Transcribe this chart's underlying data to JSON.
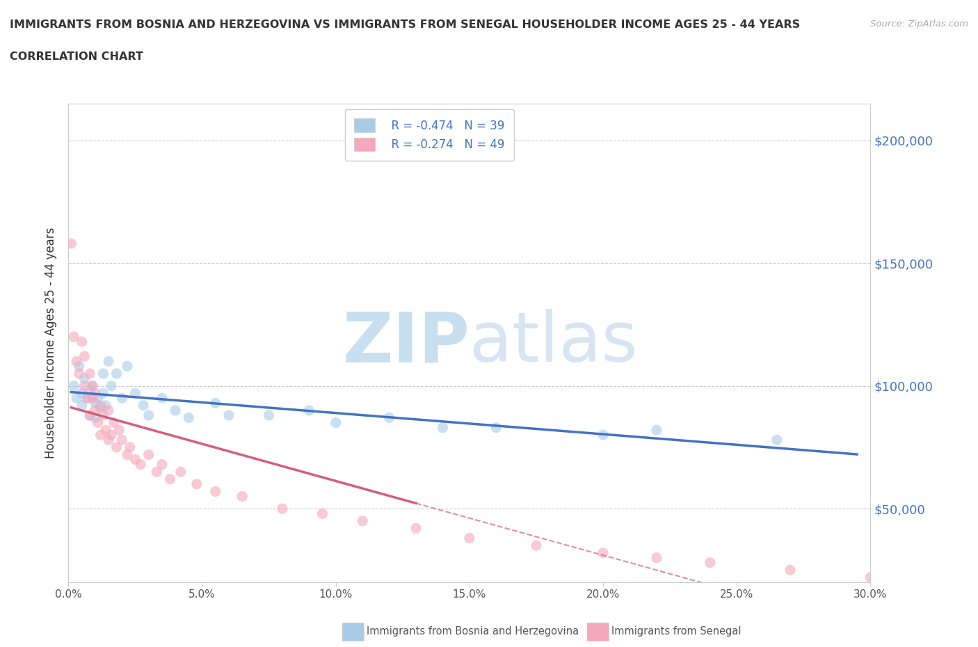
{
  "title_line1": "IMMIGRANTS FROM BOSNIA AND HERZEGOVINA VS IMMIGRANTS FROM SENEGAL HOUSEHOLDER INCOME AGES 25 - 44 YEARS",
  "title_line2": "CORRELATION CHART",
  "source": "Source: ZipAtlas.com",
  "ylabel": "Householder Income Ages 25 - 44 years",
  "xlim": [
    0.0,
    0.3
  ],
  "ylim": [
    20000,
    215000
  ],
  "yticks": [
    50000,
    100000,
    150000,
    200000
  ],
  "ytick_labels": [
    "$50,000",
    "$100,000",
    "$150,000",
    "$200,000"
  ],
  "xticks": [
    0.0,
    0.05,
    0.1,
    0.15,
    0.2,
    0.25,
    0.3
  ],
  "xtick_labels": [
    "0.0%",
    "5.0%",
    "10.0%",
    "15.0%",
    "20.0%",
    "25.0%",
    "30.0%"
  ],
  "watermark_zip": "ZIP",
  "watermark_atlas": "atlas",
  "legend_r1": "R = -0.474   N = 39",
  "legend_r2": "R = -0.274   N = 49",
  "color_bosnia": "#a8cce8",
  "color_senegal": "#f4a8bc",
  "line_color_bosnia": "#4472c4",
  "line_color_senegal": "#d45f7a",
  "bosnia_x": [
    0.002,
    0.003,
    0.004,
    0.005,
    0.005,
    0.006,
    0.007,
    0.008,
    0.008,
    0.009,
    0.01,
    0.01,
    0.011,
    0.012,
    0.013,
    0.013,
    0.014,
    0.015,
    0.016,
    0.018,
    0.02,
    0.022,
    0.025,
    0.028,
    0.03,
    0.035,
    0.04,
    0.045,
    0.055,
    0.06,
    0.075,
    0.09,
    0.1,
    0.12,
    0.14,
    0.16,
    0.2,
    0.22,
    0.265
  ],
  "bosnia_y": [
    100000,
    95000,
    108000,
    97000,
    92000,
    103000,
    95000,
    98000,
    88000,
    100000,
    93000,
    87000,
    95000,
    91000,
    105000,
    97000,
    92000,
    110000,
    100000,
    105000,
    95000,
    108000,
    97000,
    92000,
    88000,
    95000,
    90000,
    87000,
    93000,
    88000,
    88000,
    90000,
    85000,
    87000,
    83000,
    83000,
    80000,
    82000,
    78000
  ],
  "senegal_x": [
    0.001,
    0.002,
    0.003,
    0.004,
    0.005,
    0.006,
    0.006,
    0.007,
    0.008,
    0.008,
    0.009,
    0.009,
    0.01,
    0.01,
    0.011,
    0.012,
    0.012,
    0.013,
    0.014,
    0.015,
    0.015,
    0.016,
    0.017,
    0.018,
    0.019,
    0.02,
    0.022,
    0.023,
    0.025,
    0.027,
    0.03,
    0.033,
    0.035,
    0.038,
    0.042,
    0.048,
    0.055,
    0.065,
    0.08,
    0.095,
    0.11,
    0.13,
    0.15,
    0.175,
    0.2,
    0.22,
    0.24,
    0.27,
    0.3
  ],
  "senegal_y": [
    158000,
    120000,
    110000,
    105000,
    118000,
    100000,
    112000,
    95000,
    105000,
    88000,
    100000,
    95000,
    90000,
    97000,
    85000,
    92000,
    80000,
    88000,
    82000,
    78000,
    90000,
    80000,
    85000,
    75000,
    82000,
    78000,
    72000,
    75000,
    70000,
    68000,
    72000,
    65000,
    68000,
    62000,
    65000,
    60000,
    57000,
    55000,
    50000,
    48000,
    45000,
    42000,
    38000,
    35000,
    32000,
    30000,
    28000,
    25000,
    22000
  ]
}
